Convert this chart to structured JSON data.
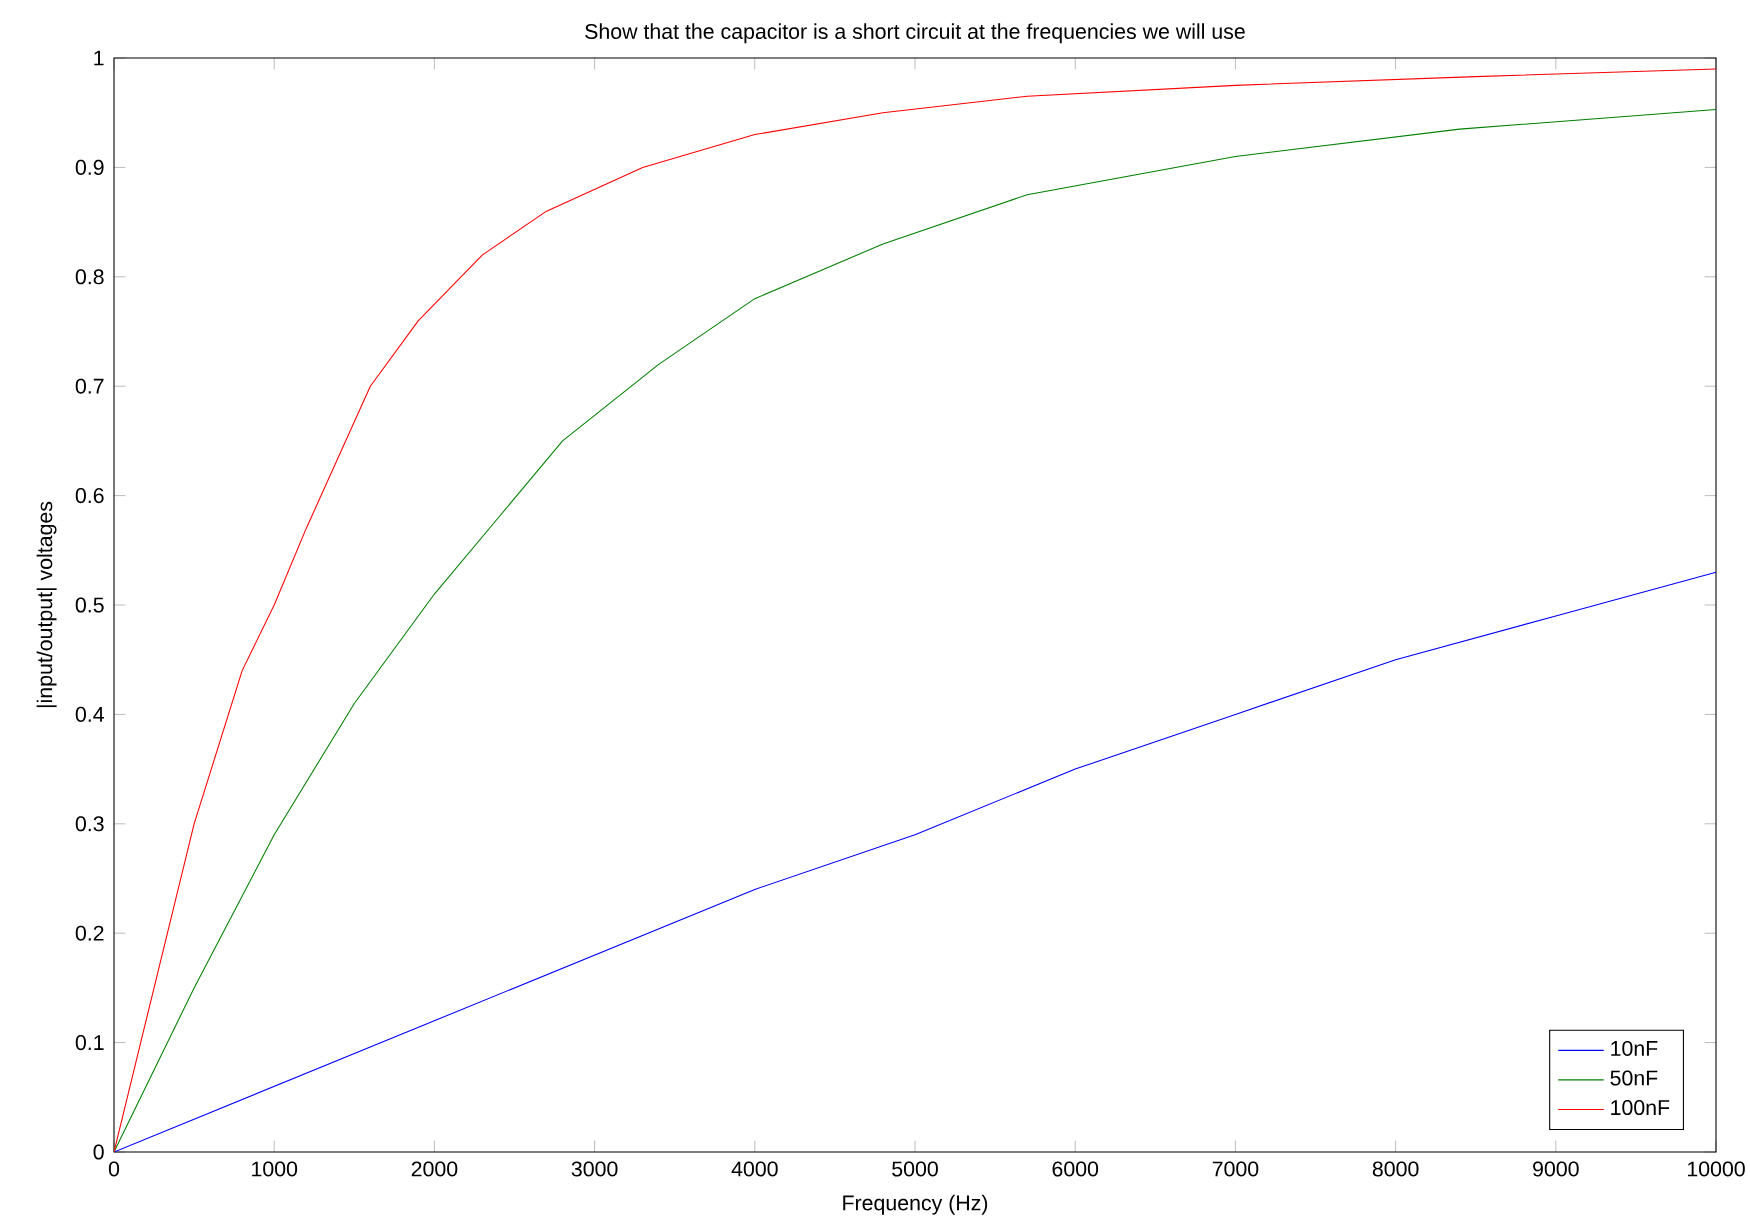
{
  "chart_data": {
    "type": "line",
    "title": "Show that the capacitor is a short circuit at the frequencies we will use",
    "xlabel": "Frequency (Hz)",
    "ylabel": "|input/output| voltages",
    "xlim": [
      0,
      10000
    ],
    "ylim": [
      0,
      1
    ],
    "xticks": [
      0,
      1000,
      2000,
      3000,
      4000,
      5000,
      6000,
      7000,
      8000,
      9000,
      10000
    ],
    "yticks": [
      0,
      0.1,
      0.2,
      0.3,
      0.4,
      0.5,
      0.6,
      0.7,
      0.8,
      0.9,
      1
    ],
    "legend": "bottom right",
    "grid": false,
    "line_style": "solid",
    "marker": "none",
    "series": [
      {
        "name": "10nF",
        "color": "#0000ff",
        "x": [
          0,
          1000,
          2000,
          3000,
          4000,
          5000,
          6000,
          7000,
          8000,
          9000,
          10000
        ],
        "values": [
          0,
          0.06,
          0.12,
          0.18,
          0.24,
          0.29,
          0.35,
          0.4,
          0.45,
          0.49,
          0.53
        ]
      },
      {
        "name": "50nF",
        "color": "#008000",
        "x": [
          0,
          500,
          1000,
          1500,
          2000,
          2400,
          2800,
          3400,
          4000,
          4800,
          5700,
          7000,
          8400,
          10000
        ],
        "values": [
          0,
          0.15,
          0.29,
          0.41,
          0.51,
          0.58,
          0.65,
          0.72,
          0.78,
          0.83,
          0.875,
          0.91,
          0.935,
          0.953
        ]
      },
      {
        "name": "100nF",
        "color": "#ff0000",
        "x": [
          0,
          200,
          500,
          800,
          1000,
          1200,
          1600,
          1900,
          2300,
          2700,
          3300,
          4000,
          4800,
          5700,
          7000,
          8500,
          10000
        ],
        "values": [
          0,
          0.12,
          0.3,
          0.44,
          0.5,
          0.57,
          0.7,
          0.76,
          0.82,
          0.86,
          0.9,
          0.93,
          0.95,
          0.965,
          0.975,
          0.983,
          0.99
        ]
      }
    ]
  }
}
